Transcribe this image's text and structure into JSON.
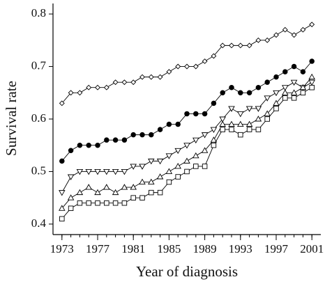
{
  "chart_data": {
    "type": "line",
    "xlabel": "Year of diagnosis",
    "ylabel": "Survival rate",
    "x": [
      1973,
      1974,
      1975,
      1976,
      1977,
      1978,
      1979,
      1980,
      1981,
      1982,
      1983,
      1984,
      1985,
      1986,
      1987,
      1988,
      1989,
      1990,
      1991,
      1992,
      1993,
      1994,
      1995,
      1996,
      1997,
      1998,
      1999,
      2000,
      2001
    ],
    "xlim": [
      1972,
      2002
    ],
    "xticks": [
      1973,
      1977,
      1981,
      1985,
      1989,
      1993,
      1997,
      2001
    ],
    "ylim": [
      0.38,
      0.82
    ],
    "yticks": [
      0.4,
      0.5,
      0.6,
      0.7,
      0.8
    ],
    "series": [
      {
        "color": "#000000",
        "marker": "diamond",
        "marker_fill": "#ffffff",
        "values": [
          0.63,
          0.65,
          0.65,
          0.66,
          0.66,
          0.66,
          0.67,
          0.67,
          0.67,
          0.68,
          0.68,
          0.68,
          0.69,
          0.7,
          0.7,
          0.7,
          0.71,
          0.72,
          0.74,
          0.74,
          0.74,
          0.74,
          0.75,
          0.75,
          0.76,
          0.77,
          0.76,
          0.77,
          0.78
        ]
      },
      {
        "color": "#000000",
        "marker": "circle",
        "marker_fill": "#000000",
        "values": [
          0.52,
          0.54,
          0.55,
          0.55,
          0.55,
          0.56,
          0.56,
          0.56,
          0.57,
          0.57,
          0.57,
          0.58,
          0.59,
          0.59,
          0.61,
          0.61,
          0.61,
          0.63,
          0.65,
          0.66,
          0.65,
          0.65,
          0.66,
          0.67,
          0.68,
          0.69,
          0.7,
          0.69,
          0.71
        ]
      },
      {
        "color": "#000000",
        "marker": "triangle-down",
        "marker_fill": "#ffffff",
        "values": [
          0.46,
          0.49,
          0.5,
          0.5,
          0.5,
          0.5,
          0.5,
          0.5,
          0.51,
          0.51,
          0.52,
          0.52,
          0.53,
          0.54,
          0.55,
          0.56,
          0.57,
          0.58,
          0.6,
          0.62,
          0.61,
          0.62,
          0.62,
          0.64,
          0.65,
          0.66,
          0.67,
          0.66,
          0.67
        ]
      },
      {
        "color": "#000000",
        "marker": "triangle-up",
        "marker_fill": "#ffffff",
        "values": [
          0.43,
          0.45,
          0.46,
          0.47,
          0.46,
          0.47,
          0.46,
          0.47,
          0.47,
          0.48,
          0.48,
          0.49,
          0.5,
          0.51,
          0.52,
          0.53,
          0.54,
          0.56,
          0.59,
          0.59,
          0.59,
          0.59,
          0.6,
          0.61,
          0.63,
          0.65,
          0.65,
          0.66,
          0.68
        ]
      },
      {
        "color": "#000000",
        "marker": "square",
        "marker_fill": "#ffffff",
        "values": [
          0.41,
          0.43,
          0.44,
          0.44,
          0.44,
          0.44,
          0.44,
          0.44,
          0.45,
          0.45,
          0.46,
          0.46,
          0.48,
          0.49,
          0.5,
          0.51,
          0.51,
          0.55,
          0.58,
          0.58,
          0.57,
          0.58,
          0.58,
          0.6,
          0.62,
          0.64,
          0.64,
          0.65,
          0.66
        ]
      }
    ]
  }
}
